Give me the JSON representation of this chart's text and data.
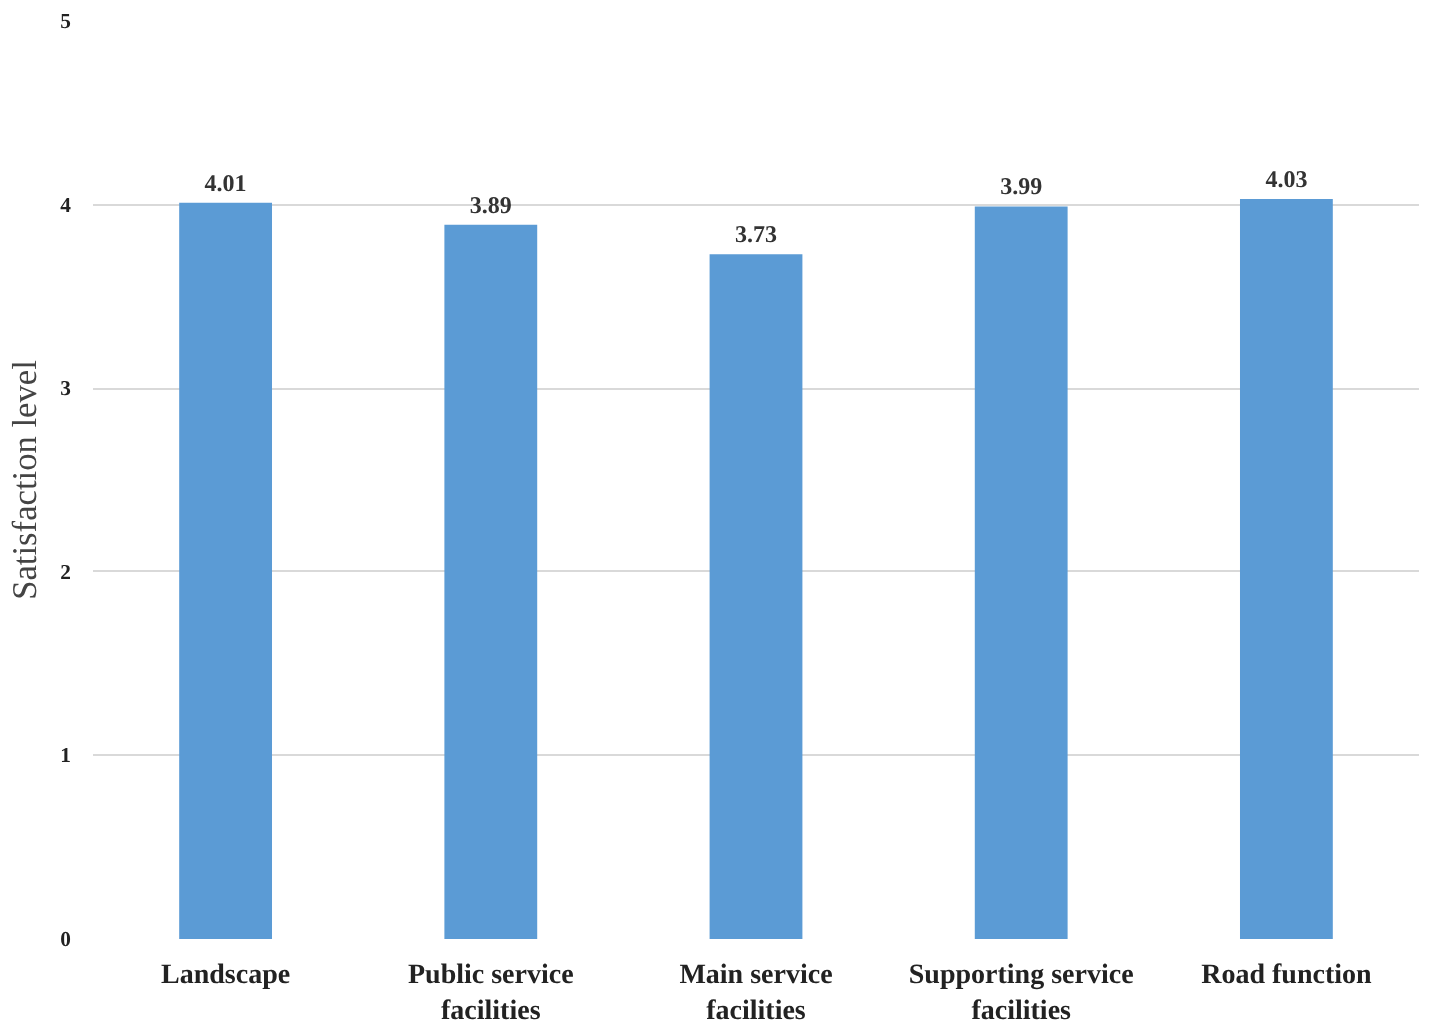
{
  "chart_data": {
    "type": "bar",
    "ylabel": "Satisfaction level",
    "categories": [
      "Landscape",
      "Public service facilities",
      "Main service facilities",
      "Supporting service facilities",
      "Road function"
    ],
    "values": [
      4.01,
      3.89,
      3.73,
      3.99,
      4.03
    ],
    "color": "#5b9bd5",
    "ylim": [
      0,
      5
    ],
    "yticks": [
      0,
      1,
      2,
      3,
      4,
      5
    ],
    "grid": "y",
    "data_labels": true
  }
}
